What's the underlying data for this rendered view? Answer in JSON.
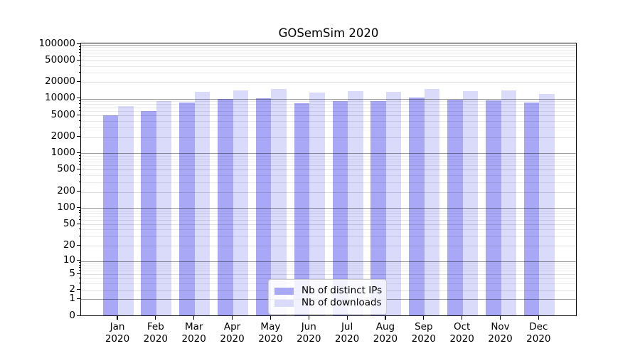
{
  "title": "GOSemSim 2020",
  "colors": {
    "distinct_ips": "#a8a8f6",
    "downloads": "#dadafa",
    "grid_major": "#9b9b9b",
    "grid_minor": "#ebebeb"
  },
  "legend": {
    "items": [
      {
        "label": "Nb of distinct IPs",
        "series": "distinct_ips"
      },
      {
        "label": "Nb of downloads",
        "series": "downloads"
      }
    ]
  },
  "chart_data": {
    "type": "bar",
    "title": "GOSemSim 2020",
    "categories": [
      "Jan 2020",
      "Feb 2020",
      "Mar 2020",
      "Apr 2020",
      "May 2020",
      "Jun 2020",
      "Jul 2020",
      "Aug 2020",
      "Sep 2020",
      "Oct 2020",
      "Nov 2020",
      "Dec 2020"
    ],
    "series": [
      {
        "name": "Nb of distinct IPs",
        "color_key": "distinct_ips",
        "values": [
          4700,
          5600,
          8100,
          9400,
          9700,
          7800,
          8500,
          8500,
          10000,
          9000,
          8800,
          8100
        ]
      },
      {
        "name": "Nb of downloads",
        "color_key": "downloads",
        "values": [
          7000,
          8600,
          12700,
          13300,
          14000,
          12100,
          13100,
          12600,
          14300,
          12900,
          13500,
          11500
        ]
      }
    ],
    "xlabel": "",
    "ylabel": "",
    "yscale": "symlog",
    "y_ticks": [
      0,
      1,
      2,
      5,
      10,
      20,
      50,
      100,
      200,
      500,
      1000,
      2000,
      5000,
      10000,
      20000,
      50000,
      100000
    ],
    "ylim": [
      0,
      100000
    ],
    "grid": true,
    "legend_position": "lower center"
  }
}
